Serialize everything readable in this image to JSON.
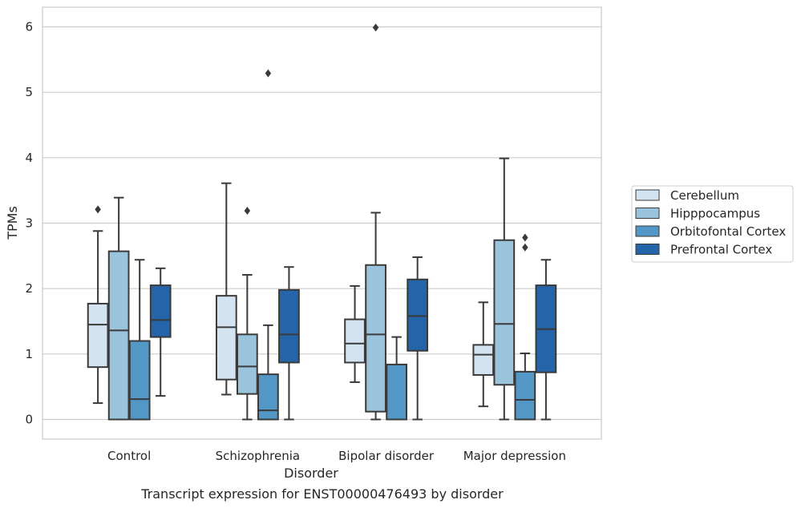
{
  "chart_data": {
    "type": "box",
    "xlabel": "Disorder",
    "ylabel": "TPMs",
    "caption": "Transcript expression for ENST00000476493 by disorder",
    "ylim": [
      -0.3,
      6.3
    ],
    "yticks": [
      0,
      1,
      2,
      3,
      4,
      5,
      6
    ],
    "grid": "horizontal",
    "legend_position": "right",
    "categories": [
      "Control",
      "Schizophrenia",
      "Bipolar disorder",
      "Major depression"
    ],
    "series": [
      {
        "name": "Cerebellum",
        "color": "#d3e3f2",
        "boxes": [
          {
            "whisker_low": 0.25,
            "q1": 0.8,
            "median": 1.45,
            "q3": 1.77,
            "whisker_high": 2.88,
            "outliers": [
              3.21
            ]
          },
          {
            "whisker_low": 0.38,
            "q1": 0.61,
            "median": 1.41,
            "q3": 1.89,
            "whisker_high": 3.61,
            "outliers": []
          },
          {
            "whisker_low": 0.57,
            "q1": 0.87,
            "median": 1.16,
            "q3": 1.53,
            "whisker_high": 2.04,
            "outliers": []
          },
          {
            "whisker_low": 0.2,
            "q1": 0.68,
            "median": 0.99,
            "q3": 1.14,
            "whisker_high": 1.79,
            "outliers": []
          }
        ]
      },
      {
        "name": "Hipppocampus",
        "color": "#9ac3dc",
        "boxes": [
          {
            "whisker_low": 0.0,
            "q1": 0.0,
            "median": 1.36,
            "q3": 2.57,
            "whisker_high": 3.39,
            "outliers": []
          },
          {
            "whisker_low": 0.0,
            "q1": 0.39,
            "median": 0.81,
            "q3": 1.3,
            "whisker_high": 2.21,
            "outliers": [
              3.19
            ]
          },
          {
            "whisker_low": 0.0,
            "q1": 0.12,
            "median": 1.3,
            "q3": 2.36,
            "whisker_high": 3.16,
            "outliers": [
              5.99
            ]
          },
          {
            "whisker_low": 0.0,
            "q1": 0.53,
            "median": 1.46,
            "q3": 2.74,
            "whisker_high": 3.99,
            "outliers": []
          }
        ]
      },
      {
        "name": "Orbitofontal Cortex",
        "color": "#5297c6",
        "boxes": [
          {
            "whisker_low": 0.0,
            "q1": 0.0,
            "median": 0.31,
            "q3": 1.2,
            "whisker_high": 2.44,
            "outliers": []
          },
          {
            "whisker_low": 0.0,
            "q1": 0.0,
            "median": 0.14,
            "q3": 0.69,
            "whisker_high": 1.44,
            "outliers": [
              5.29
            ]
          },
          {
            "whisker_low": 0.0,
            "q1": 0.0,
            "median": 0.0,
            "q3": 0.84,
            "whisker_high": 1.26,
            "outliers": []
          },
          {
            "whisker_low": 0.0,
            "q1": 0.0,
            "median": 0.3,
            "q3": 0.73,
            "whisker_high": 1.01,
            "outliers": [
              2.63,
              2.78
            ]
          }
        ]
      },
      {
        "name": "Prefrontal Cortex",
        "color": "#2464a8",
        "boxes": [
          {
            "whisker_low": 0.36,
            "q1": 1.26,
            "median": 1.52,
            "q3": 2.05,
            "whisker_high": 2.31,
            "outliers": []
          },
          {
            "whisker_low": 0.0,
            "q1": 0.87,
            "median": 1.3,
            "q3": 1.98,
            "whisker_high": 2.33,
            "outliers": []
          },
          {
            "whisker_low": 0.0,
            "q1": 1.05,
            "median": 1.58,
            "q3": 2.14,
            "whisker_high": 2.48,
            "outliers": []
          },
          {
            "whisker_low": 0.0,
            "q1": 0.72,
            "median": 1.38,
            "q3": 2.05,
            "whisker_high": 2.44,
            "outliers": []
          }
        ]
      }
    ]
  }
}
